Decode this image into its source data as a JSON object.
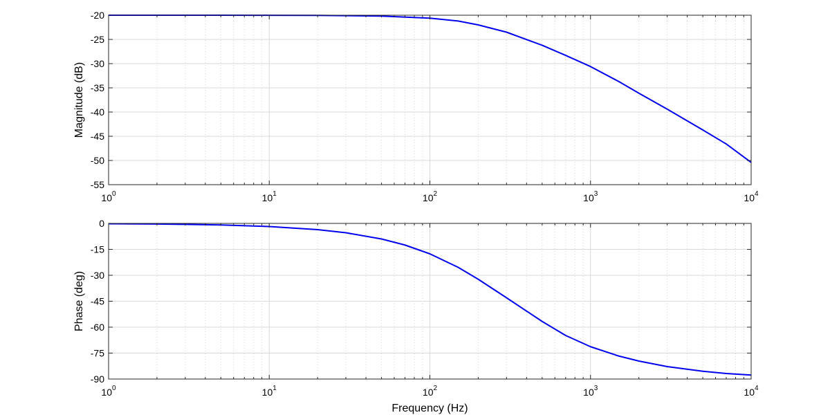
{
  "chart_data": [
    {
      "type": "line",
      "id": "magnitude",
      "ylabel": "Magnitude (dB)",
      "xlabel": "",
      "xscale": "log",
      "xlim": [
        1,
        10000
      ],
      "ylim": [
        -55,
        -20
      ],
      "yticks": [
        -20,
        -25,
        -30,
        -35,
        -40,
        -45,
        -50,
        -55
      ],
      "ytick_labels": [
        "-20",
        "-25",
        "-30",
        "-35",
        "-40",
        "-45",
        "-50",
        "-55"
      ],
      "xticks": [
        1,
        10,
        100,
        1000,
        10000
      ],
      "xtick_labels": [
        {
          "base": "10",
          "exp": "0"
        },
        {
          "base": "10",
          "exp": "1"
        },
        {
          "base": "10",
          "exp": "2"
        },
        {
          "base": "10",
          "exp": "3"
        },
        {
          "base": "10",
          "exp": "4"
        }
      ],
      "grid": true,
      "series": [
        {
          "color": "#0000ee",
          "x": [
            1,
            2,
            5,
            10,
            20,
            50,
            100,
            150,
            200,
            300,
            500,
            700,
            1000,
            1500,
            2000,
            3000,
            5000,
            7000,
            10000
          ],
          "y": [
            -20.0,
            -20.0,
            -20.0,
            -20.01,
            -20.03,
            -20.18,
            -20.6,
            -21.2,
            -22.0,
            -23.5,
            -26.2,
            -28.3,
            -30.6,
            -33.7,
            -36.1,
            -39.4,
            -43.7,
            -46.6,
            -50.4
          ]
        }
      ]
    },
    {
      "type": "line",
      "id": "phase",
      "ylabel": "Phase (deg)",
      "xlabel": "Frequency (Hz)",
      "xscale": "log",
      "xlim": [
        1,
        10000
      ],
      "ylim": [
        -90,
        0
      ],
      "yticks": [
        0,
        -15,
        -30,
        -45,
        -60,
        -75,
        -90
      ],
      "ytick_labels": [
        "0",
        "-15",
        "-30",
        "-45",
        "-60",
        "-75",
        "-90"
      ],
      "xticks": [
        1,
        10,
        100,
        1000,
        10000
      ],
      "xtick_labels": [
        {
          "base": "10",
          "exp": "0"
        },
        {
          "base": "10",
          "exp": "1"
        },
        {
          "base": "10",
          "exp": "2"
        },
        {
          "base": "10",
          "exp": "3"
        },
        {
          "base": "10",
          "exp": "4"
        }
      ],
      "grid": true,
      "series": [
        {
          "color": "#0000ee",
          "x": [
            1,
            2,
            3,
            5,
            10,
            20,
            30,
            50,
            70,
            100,
            150,
            200,
            300,
            500,
            700,
            1000,
            1500,
            2000,
            3000,
            5000,
            7000,
            10000
          ],
          "y": [
            -0.2,
            -0.36,
            -0.55,
            -0.9,
            -1.8,
            -3.6,
            -5.4,
            -9.0,
            -12.5,
            -17.6,
            -25.4,
            -32.3,
            -43.0,
            -56.7,
            -64.8,
            -71.3,
            -76.7,
            -79.6,
            -82.8,
            -85.5,
            -86.8,
            -87.7
          ]
        }
      ]
    }
  ]
}
